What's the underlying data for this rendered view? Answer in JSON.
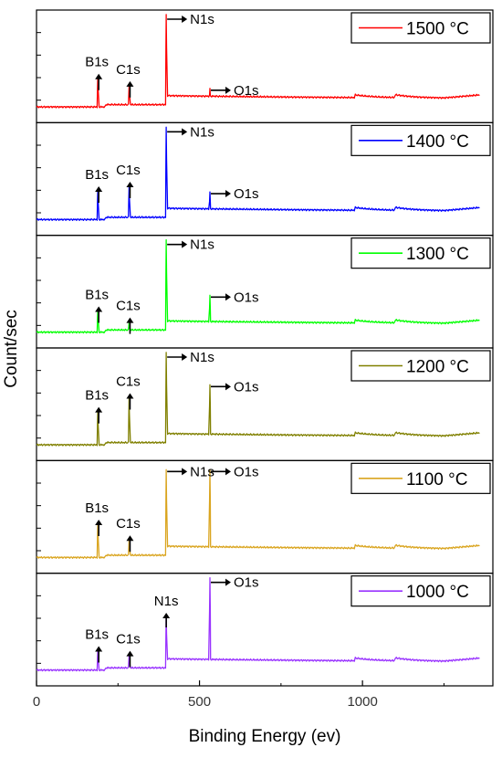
{
  "chart_data": {
    "type": "line",
    "xlabel": "Binding Energy (ev)",
    "ylabel": "Count/sec",
    "xlim": [
      0,
      1400
    ],
    "x_ticks": [
      "0",
      "500",
      "1000"
    ],
    "panels": [
      {
        "legend": "1500 °C",
        "color": "#ff0000",
        "peaks": [
          {
            "name": "B1s",
            "x": 188,
            "height": 0.3
          },
          {
            "name": "C1s",
            "x": 284,
            "height": 0.22
          },
          {
            "name": "N1s",
            "x": 398,
            "height": 1.0
          },
          {
            "name": "O1s",
            "x": 532,
            "height": 0.2
          }
        ]
      },
      {
        "legend": "1400 °C",
        "color": "#0000ff",
        "peaks": [
          {
            "name": "B1s",
            "x": 188,
            "height": 0.3
          },
          {
            "name": "C1s",
            "x": 284,
            "height": 0.35
          },
          {
            "name": "N1s",
            "x": 398,
            "height": 1.0
          },
          {
            "name": "O1s",
            "x": 532,
            "height": 0.3
          }
        ]
      },
      {
        "legend": "1300 °C",
        "color": "#00ff00",
        "peaks": [
          {
            "name": "B1s",
            "x": 188,
            "height": 0.22
          },
          {
            "name": "C1s",
            "x": 284,
            "height": 0.1
          },
          {
            "name": "N1s",
            "x": 398,
            "height": 1.0
          },
          {
            "name": "O1s",
            "x": 532,
            "height": 0.4
          }
        ]
      },
      {
        "legend": "1200 °C",
        "color": "#808000",
        "peaks": [
          {
            "name": "B1s",
            "x": 188,
            "height": 0.35
          },
          {
            "name": "C1s",
            "x": 284,
            "height": 0.5
          },
          {
            "name": "N1s",
            "x": 398,
            "height": 1.0
          },
          {
            "name": "O1s",
            "x": 532,
            "height": 0.65
          }
        ]
      },
      {
        "legend": "1100 °C",
        "color": "#daa520",
        "peaks": [
          {
            "name": "B1s",
            "x": 188,
            "height": 0.35
          },
          {
            "name": "C1s",
            "x": 284,
            "height": 0.18
          },
          {
            "name": "N1s",
            "x": 398,
            "height": 0.95
          },
          {
            "name": "O1s",
            "x": 532,
            "height": 0.95
          }
        ]
      },
      {
        "legend": "1000 °C",
        "color": "#9933ff",
        "peaks": [
          {
            "name": "B1s",
            "x": 188,
            "height": 0.2
          },
          {
            "name": "C1s",
            "x": 284,
            "height": 0.15
          },
          {
            "name": "N1s",
            "x": 398,
            "height": 0.6
          },
          {
            "name": "O1s",
            "x": 532,
            "height": 1.0
          }
        ]
      }
    ],
    "minor_features_x": [
      975,
      1100
    ]
  }
}
